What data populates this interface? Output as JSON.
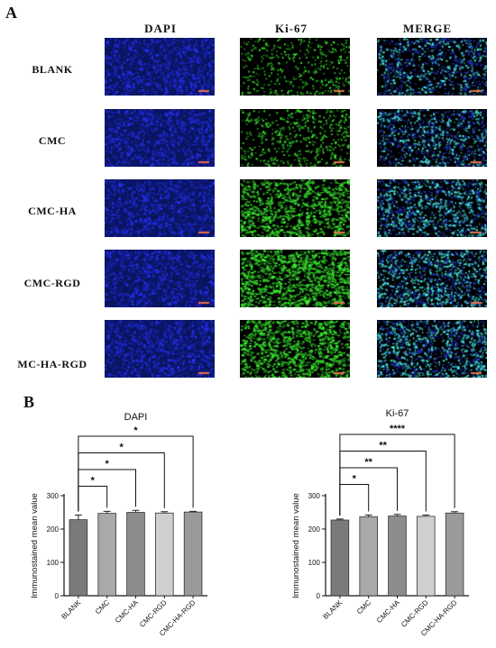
{
  "panel_a": {
    "letter": "A",
    "columns": [
      "DAPI",
      "Ki-67",
      "MERGE"
    ],
    "rows": [
      "BLANK",
      "CMC",
      "CMC-HA",
      "CMC-RGD",
      "MC-HA-RGD"
    ],
    "stain_colors": {
      "dapi": "#1a2bd6",
      "ki67": "#33e03a",
      "merge_cyan": "#4fd6f0"
    },
    "scale_bar_color": "#e8704a",
    "ki67_density": [
      0.25,
      0.35,
      0.8,
      0.95,
      0.85
    ]
  },
  "panel_b": {
    "letter": "B"
  },
  "chart_data": [
    {
      "type": "bar",
      "title": "DAPI",
      "ylabel": "Immunostained mean value",
      "categories": [
        "BLANK",
        "CMC",
        "CMC-HA",
        "CMC-RGD",
        "CMC-HA-RGD"
      ],
      "values": [
        228,
        247,
        250,
        248,
        251
      ],
      "errors": [
        14,
        6,
        6,
        4,
        2
      ],
      "ylim": [
        0,
        300
      ],
      "yticks": [
        "0",
        "100",
        "200",
        "300"
      ],
      "bar_colors": [
        "#7a7a7a",
        "#a9a9a9",
        "#8c8c8c",
        "#cfcfcf",
        "#9a9a9a"
      ],
      "significance": [
        {
          "from": 0,
          "to": 1,
          "label": "*"
        },
        {
          "from": 0,
          "to": 2,
          "label": "*"
        },
        {
          "from": 0,
          "to": 3,
          "label": "*"
        },
        {
          "from": 0,
          "to": 4,
          "label": "*"
        }
      ]
    },
    {
      "type": "bar",
      "title": "Ki-67",
      "ylabel": "Immunostained mean value",
      "categories": [
        "BLANK",
        "CMC",
        "CMC-HA",
        "CMC-RGD",
        "CMC-HA-RGD"
      ],
      "values": [
        227,
        237,
        239,
        238,
        248
      ],
      "errors": [
        3,
        5,
        5,
        4,
        4
      ],
      "ylim": [
        0,
        300
      ],
      "yticks": [
        "0",
        "100",
        "200",
        "300"
      ],
      "bar_colors": [
        "#7a7a7a",
        "#a9a9a9",
        "#8c8c8c",
        "#cfcfcf",
        "#9a9a9a"
      ],
      "significance": [
        {
          "from": 0,
          "to": 1,
          "label": "*"
        },
        {
          "from": 0,
          "to": 2,
          "label": "**"
        },
        {
          "from": 0,
          "to": 3,
          "label": "**"
        },
        {
          "from": 0,
          "to": 4,
          "label": "****"
        }
      ]
    }
  ]
}
